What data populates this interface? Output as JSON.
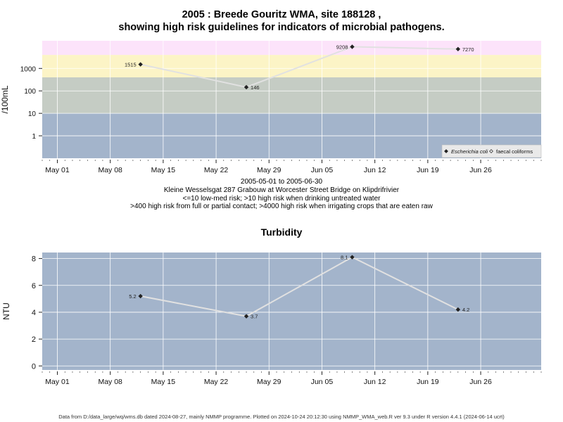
{
  "header": {
    "title_line1": "2005 : Breede Gouritz WMA, site 188128 ,",
    "title_line2": "showing high risk guidelines for indicators of microbial pathogens."
  },
  "caption": {
    "date_range": "2005-05-01 to 2005-06-30",
    "site": "Kleine Wesselsgat 287 Grabouw at Worcester Street Bridge on Klipdrifrivier",
    "guideline1": "<=10 low-med risk; >10 high risk when drinking untreated water",
    "guideline2": ">400 high risk from full or partial contact; >4000 high risk when irrigating crops that are eaten raw"
  },
  "footer": {
    "text": "Data from D:/data_large/wq/wms.db dated 2024-08-27, mainly NMMP programme. Plotted on 2024-10-24 20:12:30 using NMMP_WMA_web.R ver 9.3 under R version 4.4.1 (2024-06-14 ucrt)"
  },
  "colors": {
    "band_low": "#a3b4cb",
    "band_mid": "#c5ccc4",
    "band_high": "#fcf4c6",
    "band_top": "#fce3fa",
    "turbidity_bg": "#a3b4cb",
    "line": "#e1e1e1",
    "point": "#222222"
  },
  "chart_data": [
    {
      "type": "line",
      "ylabel": "/100mL",
      "y_scale": "log",
      "x_axis": {
        "ticks": [
          "May 01",
          "May 08",
          "May 15",
          "May 22",
          "May 29",
          "Jun 05",
          "Jun 12",
          "Jun 19",
          "Jun 26"
        ],
        "tick_dates": [
          "2005-05-01",
          "2005-05-08",
          "2005-05-15",
          "2005-05-22",
          "2005-05-29",
          "2005-06-05",
          "2005-06-12",
          "2005-06-19",
          "2005-06-26"
        ],
        "xlim": [
          "2005-04-29",
          "2005-07-04"
        ]
      },
      "y_axis": {
        "ticks": [
          1,
          10,
          100,
          1000
        ],
        "tick_labels": [
          "1",
          "10",
          "100",
          "1000"
        ],
        "ylim": [
          0.1,
          17000
        ]
      },
      "bands": [
        {
          "from": 0.1,
          "to": 10,
          "color": "#a3b4cb"
        },
        {
          "from": 10,
          "to": 400,
          "color": "#c5ccc4"
        },
        {
          "from": 400,
          "to": 4000,
          "color": "#fcf4c6"
        },
        {
          "from": 4000,
          "to": 17000,
          "color": "#fce3fa"
        }
      ],
      "series": [
        {
          "name": "Escherichia coli",
          "points": [
            {
              "x": "2005-05-12",
              "y": 1515,
              "label": "1515",
              "label_side": "left"
            },
            {
              "x": "2005-05-26",
              "y": 146,
              "label": "146",
              "label_side": "right"
            },
            {
              "x": "2005-06-09",
              "y": 9208,
              "label": "9208",
              "label_side": "left"
            },
            {
              "x": "2005-06-23",
              "y": 7270,
              "label": "7270",
              "label_side": "right"
            }
          ]
        }
      ],
      "legend": {
        "position": "bottom-right",
        "items": [
          {
            "label": "Escherichia coli",
            "marker": "filled-diamond",
            "italic": true
          },
          {
            "label": "faecal coliforms",
            "marker": "open-diamond",
            "italic": false
          }
        ]
      },
      "grid": true
    },
    {
      "type": "line",
      "title": "Turbidity",
      "ylabel": "NTU",
      "x_axis": {
        "ticks": [
          "May 01",
          "May 08",
          "May 15",
          "May 22",
          "May 29",
          "Jun 05",
          "Jun 12",
          "Jun 19",
          "Jun 26"
        ],
        "tick_dates": [
          "2005-05-01",
          "2005-05-08",
          "2005-05-15",
          "2005-05-22",
          "2005-05-29",
          "2005-06-05",
          "2005-06-12",
          "2005-06-19",
          "2005-06-26"
        ],
        "xlim": [
          "2005-04-29",
          "2005-07-04"
        ]
      },
      "y_axis": {
        "ticks": [
          0,
          2,
          4,
          6,
          8
        ],
        "tick_labels": [
          "0",
          "2",
          "4",
          "6",
          "8"
        ],
        "ylim": [
          -0.3,
          8.45
        ]
      },
      "series": [
        {
          "points": [
            {
              "x": "2005-05-12",
              "y": 5.2,
              "label": "5.2",
              "label_side": "left"
            },
            {
              "x": "2005-05-26",
              "y": 3.7,
              "label": "3.7",
              "label_side": "right"
            },
            {
              "x": "2005-06-09",
              "y": 8.1,
              "label": "8.1",
              "label_side": "left"
            },
            {
              "x": "2005-06-23",
              "y": 4.2,
              "label": "4.2",
              "label_side": "right"
            }
          ]
        }
      ],
      "grid": true
    }
  ]
}
